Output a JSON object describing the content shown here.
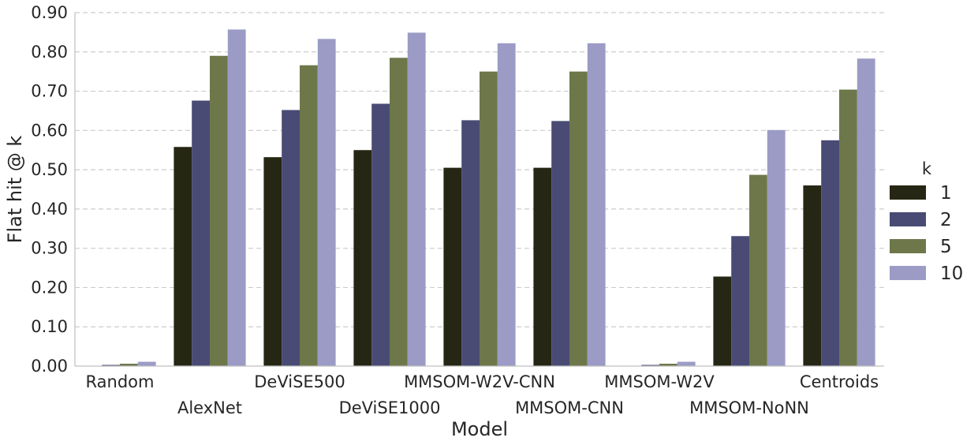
{
  "chart_data": {
    "type": "bar",
    "xlabel": "Model",
    "ylabel": "Flat hit @ k",
    "ylim": [
      0,
      0.9
    ],
    "yticks": [
      "0.00",
      "0.10",
      "0.20",
      "0.30",
      "0.40",
      "0.50",
      "0.60",
      "0.70",
      "0.80",
      "0.90"
    ],
    "grid": "horizontal dashed",
    "legend": {
      "title": "k",
      "placement": "right"
    },
    "categories": [
      "Random",
      "AlexNet",
      "DeViSE500",
      "DeViSE1000",
      "MMSOM-W2V-CNN",
      "MMSOM-CNN",
      "MMSOM-W2V",
      "MMSOM-NoNN",
      "Centroids"
    ],
    "series": [
      {
        "name": "1",
        "color": "#262614",
        "values": [
          0.001,
          0.558,
          0.532,
          0.55,
          0.505,
          0.505,
          0.001,
          0.228,
          0.46
        ]
      },
      {
        "name": "2",
        "color": "#494b74",
        "values": [
          0.003,
          0.676,
          0.652,
          0.668,
          0.626,
          0.624,
          0.003,
          0.331,
          0.575
        ]
      },
      {
        "name": "5",
        "color": "#6d774a",
        "values": [
          0.006,
          0.79,
          0.766,
          0.785,
          0.75,
          0.75,
          0.006,
          0.487,
          0.704
        ]
      },
      {
        "name": "10",
        "color": "#9b9bc6",
        "values": [
          0.011,
          0.857,
          0.833,
          0.849,
          0.822,
          0.822,
          0.011,
          0.601,
          0.783
        ]
      }
    ]
  }
}
